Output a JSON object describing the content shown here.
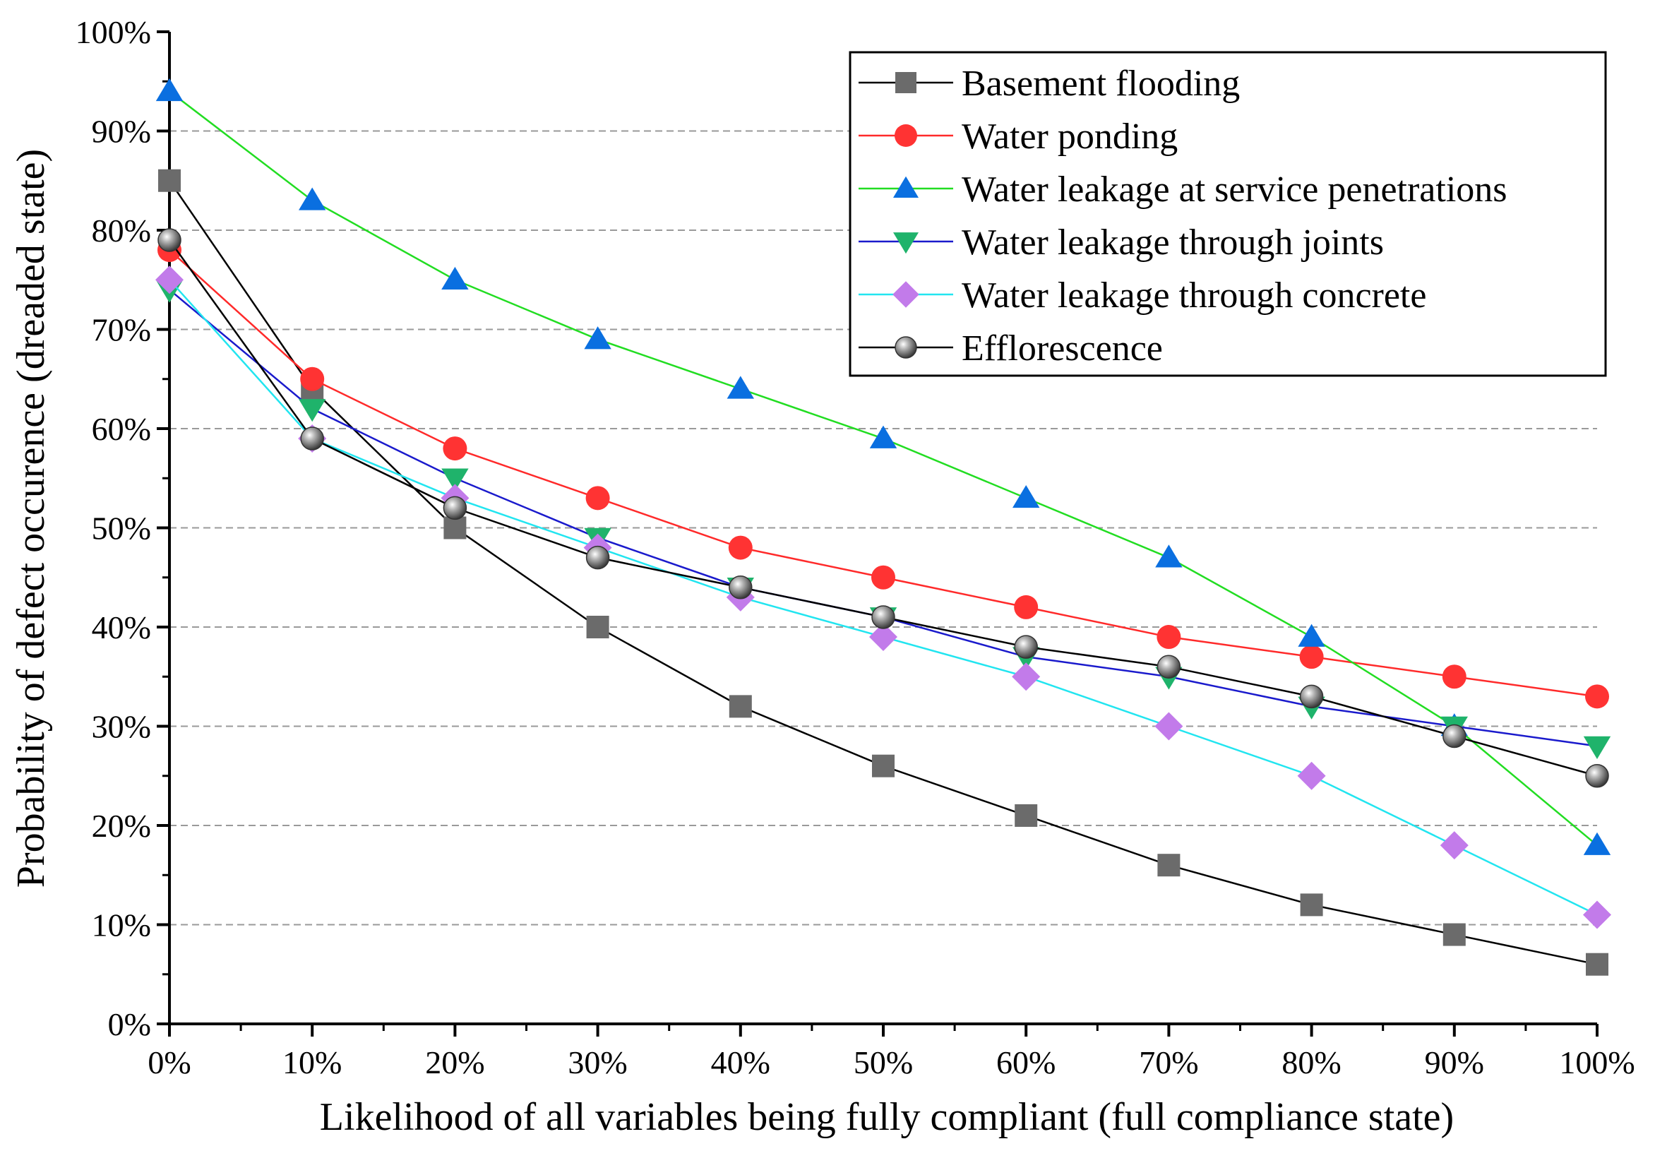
{
  "chart_data": {
    "type": "line",
    "title": "",
    "xlabel": "Likelihood of all variables being fully compliant (full compliance state)",
    "ylabel": "Probability of defect occurence (dreaded state)",
    "x": [
      0,
      10,
      20,
      30,
      40,
      50,
      60,
      70,
      80,
      90,
      100
    ],
    "x_tick_labels": [
      "0%",
      "10%",
      "20%",
      "30%",
      "40%",
      "50%",
      "60%",
      "70%",
      "80%",
      "90%",
      "100%"
    ],
    "y_tick_values": [
      0,
      10,
      20,
      30,
      40,
      50,
      60,
      70,
      80,
      90,
      100
    ],
    "y_tick_labels": [
      "0%",
      "10%",
      "20%",
      "30%",
      "40%",
      "50%",
      "60%",
      "70%",
      "80%",
      "90%",
      "100%"
    ],
    "xlim": [
      0,
      100
    ],
    "ylim": [
      0,
      100
    ],
    "grid": "horizontal dashed",
    "legend_position": "top-right",
    "series": [
      {
        "name": "Basement flooding",
        "line_color": "#000000",
        "marker_color": "#6b6b6b",
        "marker": "square",
        "values": [
          85,
          64,
          50,
          40,
          32,
          26,
          21,
          16,
          12,
          9,
          6
        ]
      },
      {
        "name": "Water ponding",
        "line_color": "#ff2a2a",
        "marker_color": "#ff3333",
        "marker": "circle",
        "values": [
          78,
          65,
          58,
          53,
          48,
          45,
          42,
          39,
          37,
          35,
          33
        ]
      },
      {
        "name": "Water leakage at service penetrations",
        "line_color": "#22dd22",
        "marker_color": "#0a6fe0",
        "marker": "triangle-up",
        "values": [
          94,
          83,
          75,
          69,
          64,
          59,
          53,
          47,
          39,
          30,
          18
        ]
      },
      {
        "name": "Water leakage through joints",
        "line_color": "#1a1acc",
        "marker_color": "#1fb36b",
        "marker": "triangle-down",
        "values": [
          74,
          62,
          55,
          49,
          44,
          41,
          37,
          35,
          32,
          30,
          28
        ]
      },
      {
        "name": "Water leakage through concrete",
        "line_color": "#22e5f0",
        "marker_color": "#c27bea",
        "marker": "diamond",
        "values": [
          75,
          59,
          53,
          48,
          43,
          39,
          35,
          30,
          25,
          18,
          11
        ]
      },
      {
        "name": "Efflorescence",
        "line_color": "#000000",
        "marker_color": "#7a7a7a",
        "marker": "sphere",
        "values": [
          79,
          59,
          52,
          47,
          44,
          41,
          38,
          36,
          33,
          29,
          25
        ]
      }
    ]
  }
}
